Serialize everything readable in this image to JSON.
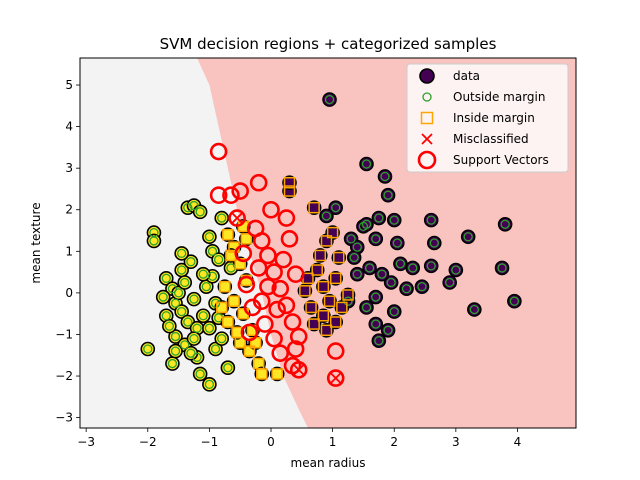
{
  "chart_data": {
    "type": "scatter",
    "title": "SVM decision regions + categorized samples",
    "xlabel": "mean radius",
    "ylabel": "mean texture",
    "xlim": [
      -3.1,
      4.95
    ],
    "ylim": [
      -3.25,
      5.65
    ],
    "xticks": [
      "−3",
      "−2",
      "−1",
      "0",
      "1",
      "2",
      "3",
      "4"
    ],
    "xtick_values": [
      -3,
      -2,
      -1,
      0,
      1,
      2,
      3,
      4
    ],
    "yticks": [
      "−3",
      "−2",
      "−1",
      "0",
      "1",
      "2",
      "3",
      "4",
      "5"
    ],
    "ytick_values": [
      -3,
      -2,
      -1,
      0,
      1,
      2,
      3,
      4,
      5
    ],
    "grid": false,
    "legend_position": "top-right",
    "legend": [
      {
        "label": "data",
        "marker": "filled-circle"
      },
      {
        "label": "Outside margin",
        "marker": "green-ring"
      },
      {
        "label": "Inside margin",
        "marker": "orange-square"
      },
      {
        "label": "Misclassified",
        "marker": "red-x"
      },
      {
        "label": "Support Vectors",
        "marker": "red-ring"
      }
    ],
    "regions": {
      "left_color": "#f3f3f3",
      "right_color": "#f9c3c0",
      "boundary": [
        [
          -1.2,
          5.65
        ],
        [
          -1.0,
          5.0
        ],
        [
          -0.85,
          4.0
        ],
        [
          -0.7,
          3.0
        ],
        [
          -0.55,
          2.0
        ],
        [
          -0.35,
          1.0
        ],
        [
          -0.15,
          0.0
        ],
        [
          0.0,
          -1.0
        ],
        [
          0.2,
          -2.0
        ],
        [
          0.45,
          -2.8
        ],
        [
          0.6,
          -3.25
        ]
      ]
    },
    "colors": {
      "class_0_fill": "#fde725",
      "class_1_fill": "#440154",
      "outside_margin": "#2ca02c",
      "inside_margin": "#ffa500",
      "misclassified": "#ff0000",
      "support_vector": "#ff0000"
    },
    "class_0_outside": [
      [
        -2.0,
        -1.35
      ],
      [
        -1.9,
        1.45
      ],
      [
        -1.9,
        1.25
      ],
      [
        -1.7,
        0.35
      ],
      [
        -1.6,
        0.1
      ],
      [
        -1.45,
        0.55
      ],
      [
        -1.35,
        2.05
      ],
      [
        -1.25,
        2.1
      ],
      [
        -1.15,
        1.95
      ],
      [
        -1.0,
        -2.2
      ],
      [
        -0.8,
        1.8
      ],
      [
        -1.7,
        -0.55
      ],
      [
        -1.55,
        -1.05
      ],
      [
        -1.4,
        -1.25
      ],
      [
        -1.3,
        0.75
      ],
      [
        -1.55,
        -0.25
      ],
      [
        -1.45,
        -0.45
      ],
      [
        -1.35,
        -0.7
      ],
      [
        -1.2,
        -0.85
      ],
      [
        -1.1,
        -0.55
      ],
      [
        -1.25,
        -0.15
      ],
      [
        -1.05,
        0.15
      ],
      [
        -0.95,
        0.4
      ],
      [
        -1.0,
        1.35
      ],
      [
        -0.95,
        1.0
      ],
      [
        -0.85,
        0.8
      ],
      [
        -1.5,
        0.0
      ],
      [
        -1.6,
        -1.7
      ],
      [
        -1.2,
        -1.55
      ],
      [
        -0.9,
        -1.35
      ],
      [
        -0.7,
        -1.8
      ],
      [
        -1.55,
        -1.4
      ],
      [
        -1.15,
        -1.95
      ],
      [
        -1.3,
        -1.45
      ],
      [
        -1.0,
        -0.85
      ],
      [
        -0.8,
        -1.1
      ],
      [
        -0.65,
        0.6
      ],
      [
        -1.4,
        0.25
      ],
      [
        -1.65,
        -0.8
      ],
      [
        -1.25,
        -1.1
      ],
      [
        -0.9,
        -0.25
      ],
      [
        -1.1,
        0.45
      ],
      [
        -0.85,
        -0.6
      ],
      [
        -1.45,
        0.95
      ],
      [
        -1.75,
        -0.1
      ]
    ],
    "class_0_inside": [
      [
        -0.6,
        1.1
      ],
      [
        -0.5,
        0.7
      ],
      [
        -0.4,
        0.3
      ],
      [
        -0.6,
        -0.2
      ],
      [
        -0.45,
        -0.5
      ],
      [
        -0.3,
        -0.9
      ],
      [
        -0.5,
        -1.2
      ],
      [
        -0.35,
        -1.4
      ],
      [
        -0.2,
        -1.7
      ],
      [
        -0.7,
        -0.7
      ],
      [
        -0.75,
        0.15
      ],
      [
        -0.55,
        -0.95
      ],
      [
        -0.25,
        -1.2
      ],
      [
        -0.65,
        0.9
      ],
      [
        -0.4,
        1.3
      ],
      [
        -0.15,
        -1.95
      ],
      [
        0.1,
        -1.95
      ],
      [
        -0.8,
        -0.35
      ],
      [
        -0.7,
        1.4
      ],
      [
        -0.45,
        1.6
      ]
    ],
    "class_1_outside": [
      [
        0.95,
        4.65
      ],
      [
        1.05,
        2.05
      ],
      [
        0.9,
        1.85
      ],
      [
        1.5,
        1.6
      ],
      [
        1.3,
        1.3
      ],
      [
        1.4,
        1.1
      ],
      [
        1.7,
        1.3
      ],
      [
        1.75,
        1.8
      ],
      [
        1.85,
        2.8
      ],
      [
        1.9,
        2.35
      ],
      [
        2.0,
        1.75
      ],
      [
        2.1,
        0.7
      ],
      [
        2.2,
        0.1
      ],
      [
        2.45,
        0.15
      ],
      [
        2.6,
        0.65
      ],
      [
        2.65,
        1.2
      ],
      [
        2.9,
        0.25
      ],
      [
        3.0,
        0.55
      ],
      [
        3.2,
        1.35
      ],
      [
        3.3,
        -0.4
      ],
      [
        3.75,
        0.6
      ],
      [
        3.8,
        1.65
      ],
      [
        3.95,
        -0.2
      ],
      [
        1.55,
        3.1
      ],
      [
        1.25,
        -0.2
      ],
      [
        1.4,
        0.45
      ],
      [
        1.55,
        -0.35
      ],
      [
        1.7,
        -0.1
      ],
      [
        1.95,
        0.25
      ],
      [
        2.0,
        -0.45
      ],
      [
        1.9,
        -0.9
      ],
      [
        1.75,
        -1.15
      ],
      [
        2.6,
        1.75
      ],
      [
        2.3,
        0.6
      ],
      [
        1.6,
        0.6
      ],
      [
        1.8,
        0.45
      ],
      [
        2.05,
        1.2
      ],
      [
        1.35,
        0.85
      ],
      [
        1.55,
        1.65
      ],
      [
        1.7,
        -0.75
      ]
    ],
    "class_1_inside": [
      [
        0.3,
        2.45
      ],
      [
        0.3,
        2.65
      ],
      [
        0.7,
        2.05
      ],
      [
        0.9,
        1.25
      ],
      [
        0.8,
        0.9
      ],
      [
        0.75,
        0.55
      ],
      [
        0.6,
        0.35
      ],
      [
        0.85,
        0.15
      ],
      [
        0.95,
        -0.2
      ],
      [
        0.85,
        -0.55
      ],
      [
        1.05,
        -0.7
      ],
      [
        1.15,
        -0.35
      ],
      [
        1.25,
        -0.05
      ],
      [
        1.05,
        0.35
      ],
      [
        0.9,
        -0.9
      ],
      [
        0.65,
        -0.35
      ],
      [
        0.55,
        0.05
      ],
      [
        0.7,
        -0.75
      ],
      [
        1.1,
        0.85
      ],
      [
        1.0,
        1.45
      ]
    ],
    "support_vectors": [
      [
        -0.85,
        3.4
      ],
      [
        -0.55,
        1.8
      ],
      [
        -0.85,
        2.35
      ],
      [
        -0.2,
        2.65
      ],
      [
        -0.15,
        1.25
      ],
      [
        -0.05,
        0.9
      ],
      [
        0.05,
        0.5
      ],
      [
        0.15,
        0.1
      ],
      [
        0.25,
        -0.3
      ],
      [
        0.35,
        -0.7
      ],
      [
        0.45,
        -1.05
      ],
      [
        0.15,
        -1.45
      ],
      [
        0.35,
        -1.75
      ],
      [
        0.45,
        -1.85
      ],
      [
        -0.3,
        -0.35
      ],
      [
        -0.1,
        -0.75
      ],
      [
        0.05,
        -1.1
      ],
      [
        -0.4,
        0.2
      ],
      [
        -0.2,
        0.6
      ],
      [
        0.0,
        2.0
      ],
      [
        0.25,
        1.8
      ],
      [
        -0.5,
        2.45
      ],
      [
        -0.35,
        -0.95
      ],
      [
        -0.05,
        0.15
      ],
      [
        0.2,
        0.8
      ],
      [
        0.3,
        1.3
      ],
      [
        -0.45,
        0.95
      ],
      [
        0.1,
        -0.4
      ],
      [
        0.4,
        0.45
      ],
      [
        -0.15,
        -0.2
      ],
      [
        1.05,
        -2.05
      ],
      [
        1.05,
        -1.4
      ],
      [
        -0.65,
        2.35
      ],
      [
        0.4,
        -1.35
      ],
      [
        -0.25,
        1.55
      ]
    ],
    "misclassified": [
      [
        1.05,
        -2.05
      ],
      [
        -0.55,
        1.8
      ],
      [
        0.45,
        -1.85
      ]
    ]
  }
}
